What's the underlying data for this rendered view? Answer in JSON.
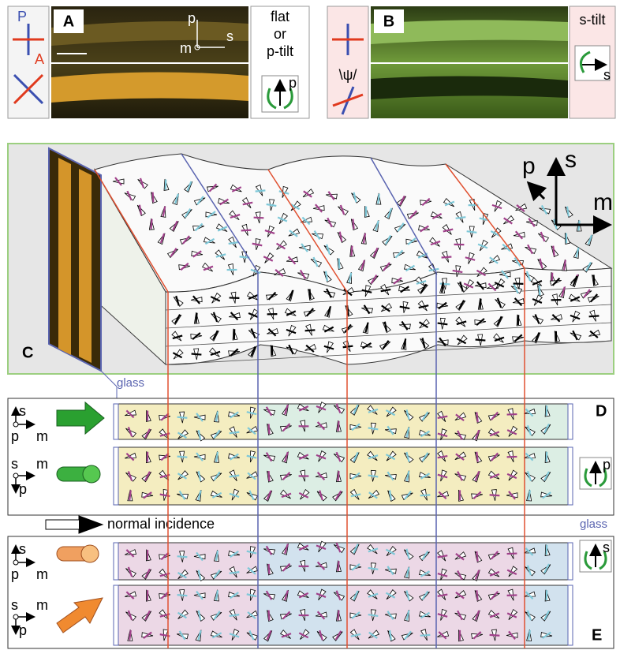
{
  "panel_a": {
    "label": "A",
    "polarizer": "P",
    "analyzer": "A",
    "axis_p": "p",
    "axis_s": "s",
    "axis_m": "m",
    "mode_lines": [
      "flat",
      "or",
      "p-tilt"
    ],
    "icon_axis": "p"
  },
  "panel_b": {
    "label": "B",
    "angle": "\\ψ/",
    "mode": "s-tilt",
    "icon_axis": "s"
  },
  "panel_c": {
    "label": "C",
    "axis_p": "p",
    "axis_s": "s",
    "axis_m": "m",
    "glass": "glass"
  },
  "panel_d": {
    "label": "D",
    "frames": [
      {
        "s": "s",
        "p": "p",
        "m": "m"
      },
      {
        "s": "s",
        "m": "m",
        "p": "p"
      }
    ],
    "icon_axis": "p"
  },
  "normal_incidence": "normal incidence",
  "glass": "glass",
  "panel_e": {
    "label": "E",
    "frames": [
      {
        "s": "s",
        "p": "p",
        "m": "m"
      },
      {
        "s": "s",
        "m": "m",
        "p": "p"
      }
    ],
    "icon_axis": "s"
  }
}
